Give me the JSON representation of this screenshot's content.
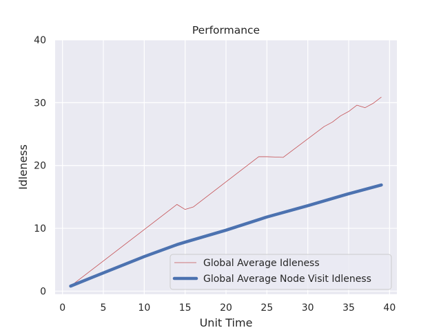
{
  "chart_data": {
    "type": "line",
    "title": "Performance",
    "xlabel": "Unit Time",
    "ylabel": "Idleness",
    "xlim": [
      -0.9,
      40.9
    ],
    "ylim": [
      -0.5,
      40
    ],
    "xticks": [
      0,
      5,
      10,
      15,
      20,
      25,
      30,
      35,
      40
    ],
    "yticks": [
      0,
      10,
      20,
      30,
      40
    ],
    "grid": true,
    "legend_position": "bottom-right",
    "background": "#eaeaf2",
    "series": [
      {
        "name": "Global Average Idleness",
        "color": "#c44e52",
        "stroke": "thin",
        "x": [
          1,
          14,
          15,
          16,
          24,
          25,
          26,
          27,
          32,
          33,
          34,
          35,
          36,
          37,
          38,
          39
        ],
        "y": [
          0.8,
          13.8,
          13.0,
          13.4,
          21.4,
          21.4,
          21.35,
          21.3,
          26.2,
          26.9,
          27.9,
          28.6,
          29.6,
          29.2,
          29.9,
          30.9
        ]
      },
      {
        "name": "Global Average Node Visit Idleness",
        "color": "#4c72b0",
        "stroke": "thick",
        "x": [
          1,
          5,
          10,
          14,
          15,
          20,
          25,
          30,
          35,
          39
        ],
        "y": [
          0.8,
          2.9,
          5.5,
          7.4,
          7.8,
          9.7,
          11.8,
          13.6,
          15.5,
          16.9
        ]
      }
    ]
  }
}
